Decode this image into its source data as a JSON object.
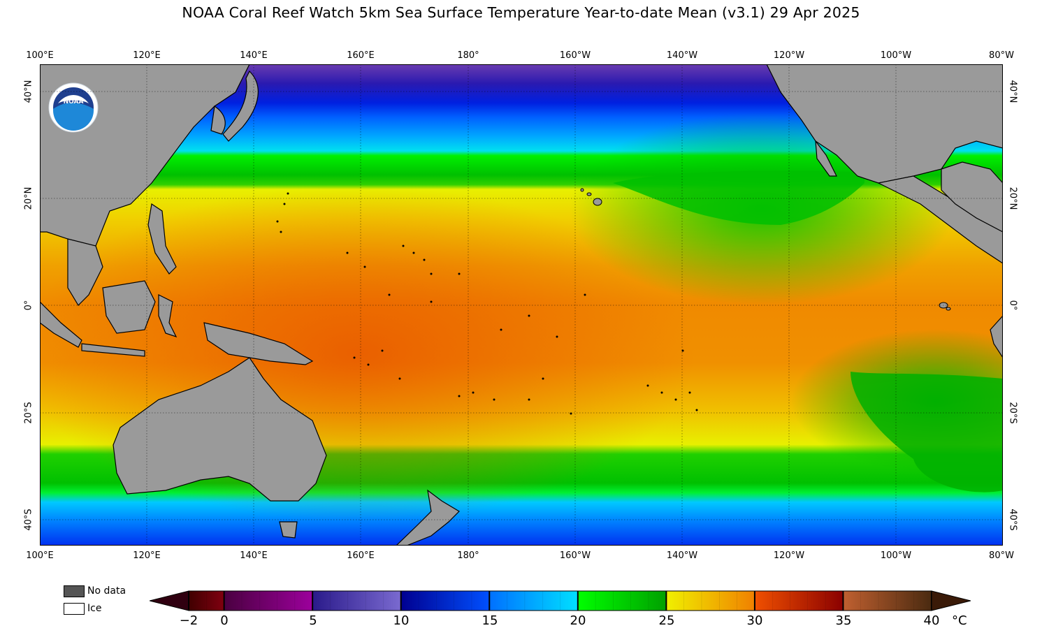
{
  "title": "NOAA Coral Reef Watch 5km Sea Surface Temperature Year-to-date Mean  (v3.1)   29 Apr 2025",
  "longitude_labels": [
    "100°E",
    "120°E",
    "140°E",
    "160°E",
    "180°",
    "160°W",
    "140°W",
    "120°W",
    "100°W",
    "80°W"
  ],
  "latitude_labels": [
    "40°N",
    "20°N",
    "0°",
    "20°S",
    "40°S"
  ],
  "legend": {
    "no_data": "No data",
    "ice": "Ice",
    "no_data_color": "#555555",
    "ice_color": "#ffffff",
    "land_color": "#9a9a9a"
  },
  "colorbar": {
    "unit": "°C",
    "ticks": [
      "−2",
      "0",
      "5",
      "10",
      "15",
      "20",
      "25",
      "30",
      "35",
      "40"
    ],
    "range": [
      -2,
      40
    ],
    "segments": [
      {
        "from": 0,
        "to": 5,
        "colors": [
          "#4a0040",
          "#9c009c"
        ]
      },
      {
        "from": 5,
        "to": 10,
        "colors": [
          "#2a1a8a",
          "#7a6ad0"
        ]
      },
      {
        "from": 10,
        "to": 15,
        "colors": [
          "#000090",
          "#0050ff"
        ]
      },
      {
        "from": 15,
        "to": 20,
        "colors": [
          "#0070ff",
          "#00e0ff"
        ]
      },
      {
        "from": 20,
        "to": 25,
        "colors": [
          "#00ff00",
          "#00a000"
        ]
      },
      {
        "from": 25,
        "to": 30,
        "colors": [
          "#f0f000",
          "#f08000"
        ]
      },
      {
        "from": 30,
        "to": 35,
        "colors": [
          "#f05000",
          "#8a0000"
        ]
      },
      {
        "from": 35,
        "to": 40,
        "colors": [
          "#c06030",
          "#4a2a10"
        ]
      }
    ],
    "under_color": "#300010",
    "over_color": "#3a1a08",
    "below_zero_colors": [
      "#400000",
      "#800010"
    ]
  },
  "logo": {
    "text": "NOAA"
  }
}
